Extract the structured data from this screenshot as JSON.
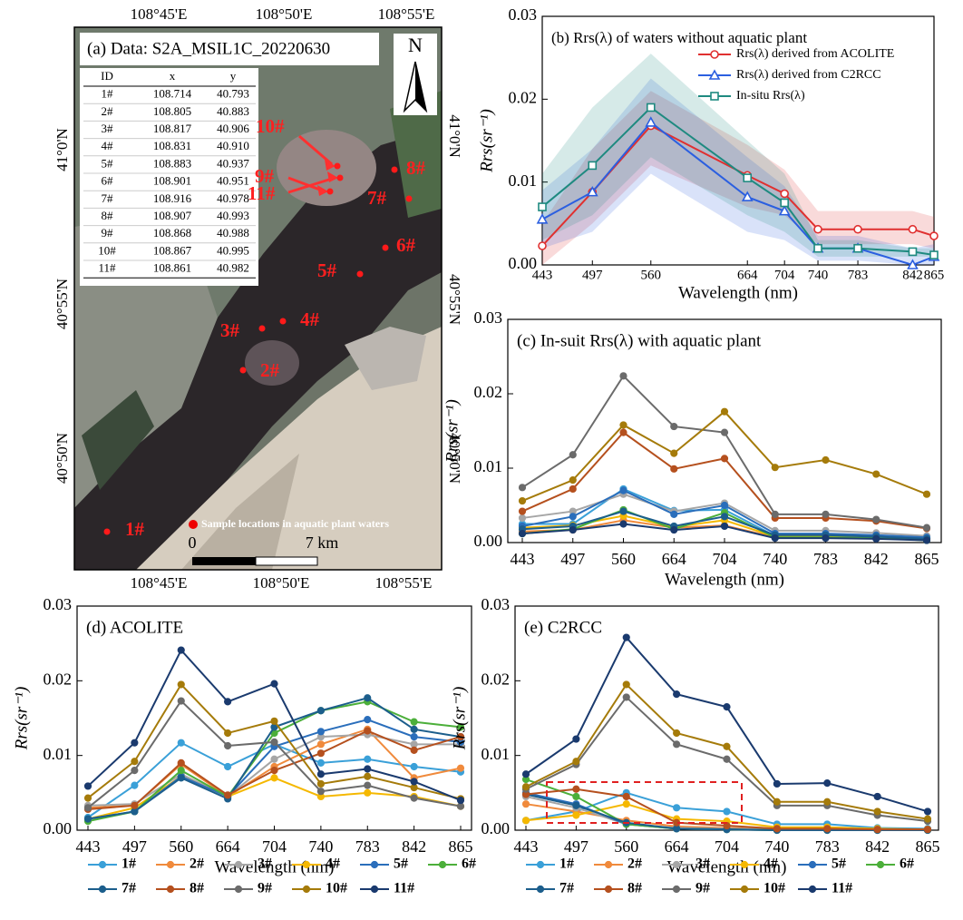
{
  "map": {
    "title": "(a) Data: S2A_MSIL1C_20220630",
    "top_ticks": [
      "108°45'E",
      "108°50'E",
      "108°55'E"
    ],
    "bottom_ticks": [
      "108°45'E",
      "108°50'E",
      "108°55'E"
    ],
    "left_ticks": [
      "41°0'N",
      "40°55'N",
      "40°50'N"
    ],
    "right_ticks": [
      "41°0'N",
      "40°55'N",
      "40°50'N"
    ],
    "north": "N",
    "table": {
      "header": [
        "ID",
        "x",
        "y"
      ],
      "rows": [
        [
          "1#",
          "108.714",
          "40.793"
        ],
        [
          "2#",
          "108.805",
          "40.883"
        ],
        [
          "3#",
          "108.817",
          "40.906"
        ],
        [
          "4#",
          "108.831",
          "40.910"
        ],
        [
          "5#",
          "108.883",
          "40.937"
        ],
        [
          "6#",
          "108.901",
          "40.951"
        ],
        [
          "7#",
          "108.916",
          "40.978"
        ],
        [
          "8#",
          "108.907",
          "40.993"
        ],
        [
          "9#",
          "108.868",
          "40.988"
        ],
        [
          "10#",
          "108.867",
          "40.995"
        ],
        [
          "11#",
          "108.861",
          "40.982"
        ]
      ]
    },
    "points": [
      "1#",
      "2#",
      "3#",
      "4#",
      "5#",
      "6#",
      "7#",
      "8#",
      "9#",
      "10#",
      "11#"
    ],
    "legend": "Sample locations in aquatic plant waters",
    "scale": [
      "0",
      "7 km"
    ]
  },
  "chart_data": [
    {
      "type": "line",
      "title": "(b) Rrs(λ) of waters without aquatic plant",
      "x_label": "Wavelength (nm)",
      "y_label": "Rrs(sr⁻¹)",
      "x": [
        443,
        497,
        560,
        664,
        704,
        740,
        783,
        842,
        865
      ],
      "xlim": [
        443,
        865
      ],
      "xticks": [
        443,
        497,
        560,
        664,
        704,
        740,
        783,
        842,
        865
      ],
      "ylim": [
        0,
        0.03
      ],
      "yticks": [
        {
          "value": 0,
          "label": "0.00"
        },
        0.01,
        0.02,
        0.03
      ],
      "legend": "upper right",
      "series": [
        {
          "name": "Rrs(λ) derived from ACOLITE",
          "color": "#e03030",
          "marker": "circle",
          "values": [
            0.0023,
            0.0088,
            0.0168,
            0.0108,
            0.0086,
            0.0043,
            0.0043,
            0.0043,
            0.0035
          ],
          "upper": [
            0.005,
            0.014,
            0.021,
            0.0145,
            0.0115,
            0.0065,
            0.0065,
            0.0065,
            0.0058
          ],
          "lower": [
            0.0,
            0.005,
            0.012,
            0.007,
            0.006,
            0.0025,
            0.0025,
            0.0025,
            0.002
          ]
        },
        {
          "name": "Rrs(λ) derived from C2RCC",
          "color": "#2b5fe0",
          "marker": "triangle",
          "values": [
            0.0055,
            0.0088,
            0.0172,
            0.0082,
            0.0065,
            0.002,
            0.002,
            0.0,
            0.001
          ],
          "upper": [
            0.009,
            0.014,
            0.0225,
            0.013,
            0.0095,
            0.0035,
            0.0035,
            0.002,
            0.0025
          ],
          "lower": [
            0.002,
            0.004,
            0.011,
            0.004,
            0.003,
            0.0005,
            0.0005,
            0.0,
            0.0
          ]
        },
        {
          "name": "In-situ Rrs(λ)",
          "color": "#1e8a80",
          "marker": "square",
          "values": [
            0.007,
            0.012,
            0.019,
            0.0105,
            0.0075,
            0.002,
            0.002,
            0.0016,
            0.0012
          ],
          "upper": [
            0.011,
            0.019,
            0.0255,
            0.015,
            0.011,
            0.003,
            0.003,
            0.002,
            0.002
          ],
          "lower": [
            0.003,
            0.006,
            0.013,
            0.006,
            0.004,
            0.001,
            0.001,
            0.001,
            0.001
          ]
        }
      ]
    },
    {
      "type": "line",
      "title": "(c) In-suit Rrs(λ) with aquatic plant",
      "x_label": "Wavelength (nm)",
      "y_label": "Rrs(sr⁻¹)",
      "categories": [
        "443",
        "497",
        "560",
        "664",
        "704",
        "740",
        "783",
        "842",
        "865"
      ],
      "ylim": [
        0,
        0.03
      ],
      "yticks": [
        {
          "value": 0,
          "label": "0.00"
        },
        0.01,
        0.02,
        0.03
      ],
      "series": [
        {
          "color": "#3aa0d8",
          "values": [
            0.0025,
            0.0025,
            0.0072,
            0.0043,
            0.0044,
            0.0009,
            0.0009,
            0.0008,
            0.0005
          ]
        },
        {
          "color": "#f08a3c",
          "values": [
            0.0015,
            0.0017,
            0.003,
            0.002,
            0.0023,
            0.0007,
            0.0007,
            0.0006,
            0.0004
          ]
        },
        {
          "color": "#a6a6a6",
          "values": [
            0.0033,
            0.0042,
            0.0065,
            0.0042,
            0.0053,
            0.0016,
            0.0016,
            0.0013,
            0.0009
          ]
        },
        {
          "color": "#f5b800",
          "values": [
            0.002,
            0.0023,
            0.0036,
            0.0021,
            0.003,
            0.0008,
            0.0008,
            0.0007,
            0.0005
          ]
        },
        {
          "color": "#2a6ebb",
          "values": [
            0.0022,
            0.0035,
            0.007,
            0.0038,
            0.005,
            0.0012,
            0.0012,
            0.001,
            0.0007
          ]
        },
        {
          "color": "#4caf3a",
          "values": [
            0.0012,
            0.0018,
            0.0044,
            0.0018,
            0.004,
            0.0007,
            0.0007,
            0.0006,
            0.0003
          ]
        },
        {
          "color": "#1c5e8c",
          "values": [
            0.0018,
            0.0022,
            0.0042,
            0.0022,
            0.0035,
            0.001,
            0.001,
            0.0008,
            0.0005
          ]
        },
        {
          "color": "#b5501e",
          "values": [
            0.0042,
            0.0072,
            0.0148,
            0.0099,
            0.0113,
            0.0033,
            0.0033,
            0.0029,
            0.0019
          ]
        },
        {
          "color": "#6b6b6b",
          "values": [
            0.0074,
            0.0118,
            0.0224,
            0.0156,
            0.0148,
            0.0038,
            0.0038,
            0.0031,
            0.002
          ]
        },
        {
          "color": "#a57b0a",
          "values": [
            0.0056,
            0.0084,
            0.0158,
            0.012,
            0.0176,
            0.0101,
            0.0111,
            0.0092,
            0.0065
          ]
        },
        {
          "color": "#1a3a6e",
          "values": [
            0.0012,
            0.0017,
            0.0025,
            0.0017,
            0.0022,
            0.0006,
            0.0006,
            0.0005,
            0.0003
          ]
        }
      ]
    },
    {
      "type": "line",
      "title": "(d) ACOLITE",
      "x_label": "Wavelength (nm)",
      "y_label": "Rrs(sr⁻¹)",
      "categories": [
        "443",
        "497",
        "560",
        "664",
        "704",
        "740",
        "783",
        "842",
        "865"
      ],
      "ylim": [
        0,
        0.03
      ],
      "yticks": [
        {
          "value": 0,
          "label": "0.00"
        },
        0.01,
        0.02,
        0.03
      ],
      "legend": "bottom",
      "series": [
        {
          "name": "1#",
          "color": "#3aa0d8",
          "values": [
            0.0017,
            0.006,
            0.0117,
            0.0085,
            0.0115,
            0.009,
            0.0095,
            0.0085,
            0.0078
          ]
        },
        {
          "name": "2#",
          "color": "#f08a3c",
          "values": [
            0.003,
            0.0033,
            0.0088,
            0.0045,
            0.0085,
            0.0115,
            0.0135,
            0.007,
            0.0083
          ]
        },
        {
          "name": "3#",
          "color": "#a6a6a6",
          "values": [
            0.0033,
            0.0035,
            0.0075,
            0.0045,
            0.0095,
            0.0125,
            0.0128,
            0.0115,
            0.0115
          ]
        },
        {
          "name": "4#",
          "color": "#f5b800",
          "values": [
            0.0015,
            0.003,
            0.0072,
            0.0045,
            0.007,
            0.0045,
            0.005,
            0.0045,
            0.0032
          ]
        },
        {
          "name": "5#",
          "color": "#2a6ebb",
          "values": [
            0.0015,
            0.0025,
            0.0072,
            0.0045,
            0.0112,
            0.0132,
            0.0148,
            0.0125,
            0.0118
          ]
        },
        {
          "name": "6#",
          "color": "#4caf3a",
          "values": [
            0.0012,
            0.0025,
            0.008,
            0.0045,
            0.013,
            0.016,
            0.0172,
            0.0145,
            0.0138
          ]
        },
        {
          "name": "7#",
          "color": "#1c5e8c",
          "values": [
            0.0015,
            0.0025,
            0.007,
            0.0042,
            0.0138,
            0.016,
            0.0177,
            0.0135,
            0.0125
          ]
        },
        {
          "name": "8#",
          "color": "#b5501e",
          "values": [
            0.0028,
            0.0033,
            0.009,
            0.0047,
            0.008,
            0.0103,
            0.0133,
            0.0107,
            0.0125
          ]
        },
        {
          "name": "9#",
          "color": "#6b6b6b",
          "values": [
            0.003,
            0.008,
            0.0173,
            0.0113,
            0.0118,
            0.0052,
            0.006,
            0.0043,
            0.0032
          ]
        },
        {
          "name": "10#",
          "color": "#a57b0a",
          "values": [
            0.0043,
            0.0092,
            0.0195,
            0.013,
            0.0146,
            0.0062,
            0.0072,
            0.0057,
            0.0042
          ]
        },
        {
          "name": "11#",
          "color": "#1a3a6e",
          "values": [
            0.0059,
            0.0117,
            0.0241,
            0.0172,
            0.0196,
            0.0075,
            0.0082,
            0.0065,
            0.004
          ]
        }
      ]
    },
    {
      "type": "line",
      "title": "(e) C2RCC",
      "x_label": "Wavelength (nm)",
      "y_label": "Rrs(sr⁻¹)",
      "categories": [
        "443",
        "497",
        "560",
        "664",
        "704",
        "740",
        "783",
        "842",
        "865"
      ],
      "ylim": [
        0,
        0.03
      ],
      "yticks": [
        {
          "value": 0,
          "label": "0.00"
        },
        0.01,
        0.02,
        0.03
      ],
      "legend": "bottom",
      "series": [
        {
          "name": "1#",
          "color": "#3aa0d8",
          "values": [
            0.0013,
            0.0025,
            0.005,
            0.003,
            0.0025,
            0.0008,
            0.0008,
            0.0003,
            0.0002
          ]
        },
        {
          "name": "2#",
          "color": "#f08a3c",
          "values": [
            0.0035,
            0.0025,
            0.0013,
            0.0005,
            0.0003,
            0.0001,
            0.0001,
            0.0001,
            0.0001
          ]
        },
        {
          "name": "3#",
          "color": "#a6a6a6",
          "values": [
            0.0045,
            0.003,
            0.0008,
            0.0003,
            0.0002,
            0.0001,
            0.0001,
            0.0001,
            0.0001
          ]
        },
        {
          "name": "4#",
          "color": "#f5b800",
          "values": [
            0.0013,
            0.002,
            0.0035,
            0.0015,
            0.0012,
            0.0004,
            0.0004,
            0.0002,
            0.0001
          ]
        },
        {
          "name": "5#",
          "color": "#2a6ebb",
          "values": [
            0.005,
            0.0035,
            0.0008,
            0.0002,
            0.0001,
            0,
            0,
            0,
            0
          ]
        },
        {
          "name": "6#",
          "color": "#4caf3a",
          "values": [
            0.0068,
            0.0045,
            0.0008,
            0.0002,
            0.0001,
            0,
            0,
            0,
            0
          ]
        },
        {
          "name": "7#",
          "color": "#1c5e8c",
          "values": [
            0.0048,
            0.0033,
            0.001,
            0.0002,
            0.0001,
            0,
            0,
            0,
            0
          ]
        },
        {
          "name": "8#",
          "color": "#b5501e",
          "values": [
            0.0048,
            0.0055,
            0.0045,
            0.001,
            0.0006,
            0.0002,
            0.0002,
            0.0001,
            0.0001
          ]
        },
        {
          "name": "9#",
          "color": "#6b6b6b",
          "values": [
            0.0055,
            0.0088,
            0.0178,
            0.0115,
            0.0095,
            0.0033,
            0.0033,
            0.002,
            0.0012
          ]
        },
        {
          "name": "10#",
          "color": "#a57b0a",
          "values": [
            0.0058,
            0.0092,
            0.0195,
            0.013,
            0.0112,
            0.0038,
            0.0038,
            0.0025,
            0.0015
          ]
        },
        {
          "name": "11#",
          "color": "#1a3a6e",
          "values": [
            0.0075,
            0.0122,
            0.0258,
            0.0182,
            0.0165,
            0.0062,
            0.0063,
            0.0045,
            0.0025
          ]
        }
      ]
    }
  ]
}
